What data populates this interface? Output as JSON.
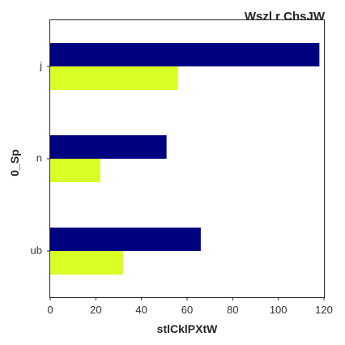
{
  "chart_data": {
    "type": "bar",
    "orientation": "horizontal",
    "title": "Wszl r ChsJW",
    "xlabel": "stlCklPXtW",
    "ylabel": "0_Sp",
    "categories": [
      "j",
      "n",
      "ub"
    ],
    "series": [
      {
        "color": "#000080",
        "values": [
          118,
          51,
          66
        ]
      },
      {
        "color": "#d8ff26",
        "values": [
          56,
          22,
          32
        ]
      }
    ],
    "xlim": [
      0,
      120
    ],
    "xticks": [
      0,
      20,
      40,
      60,
      80,
      100,
      120
    ],
    "grid": false,
    "legend": "none"
  }
}
